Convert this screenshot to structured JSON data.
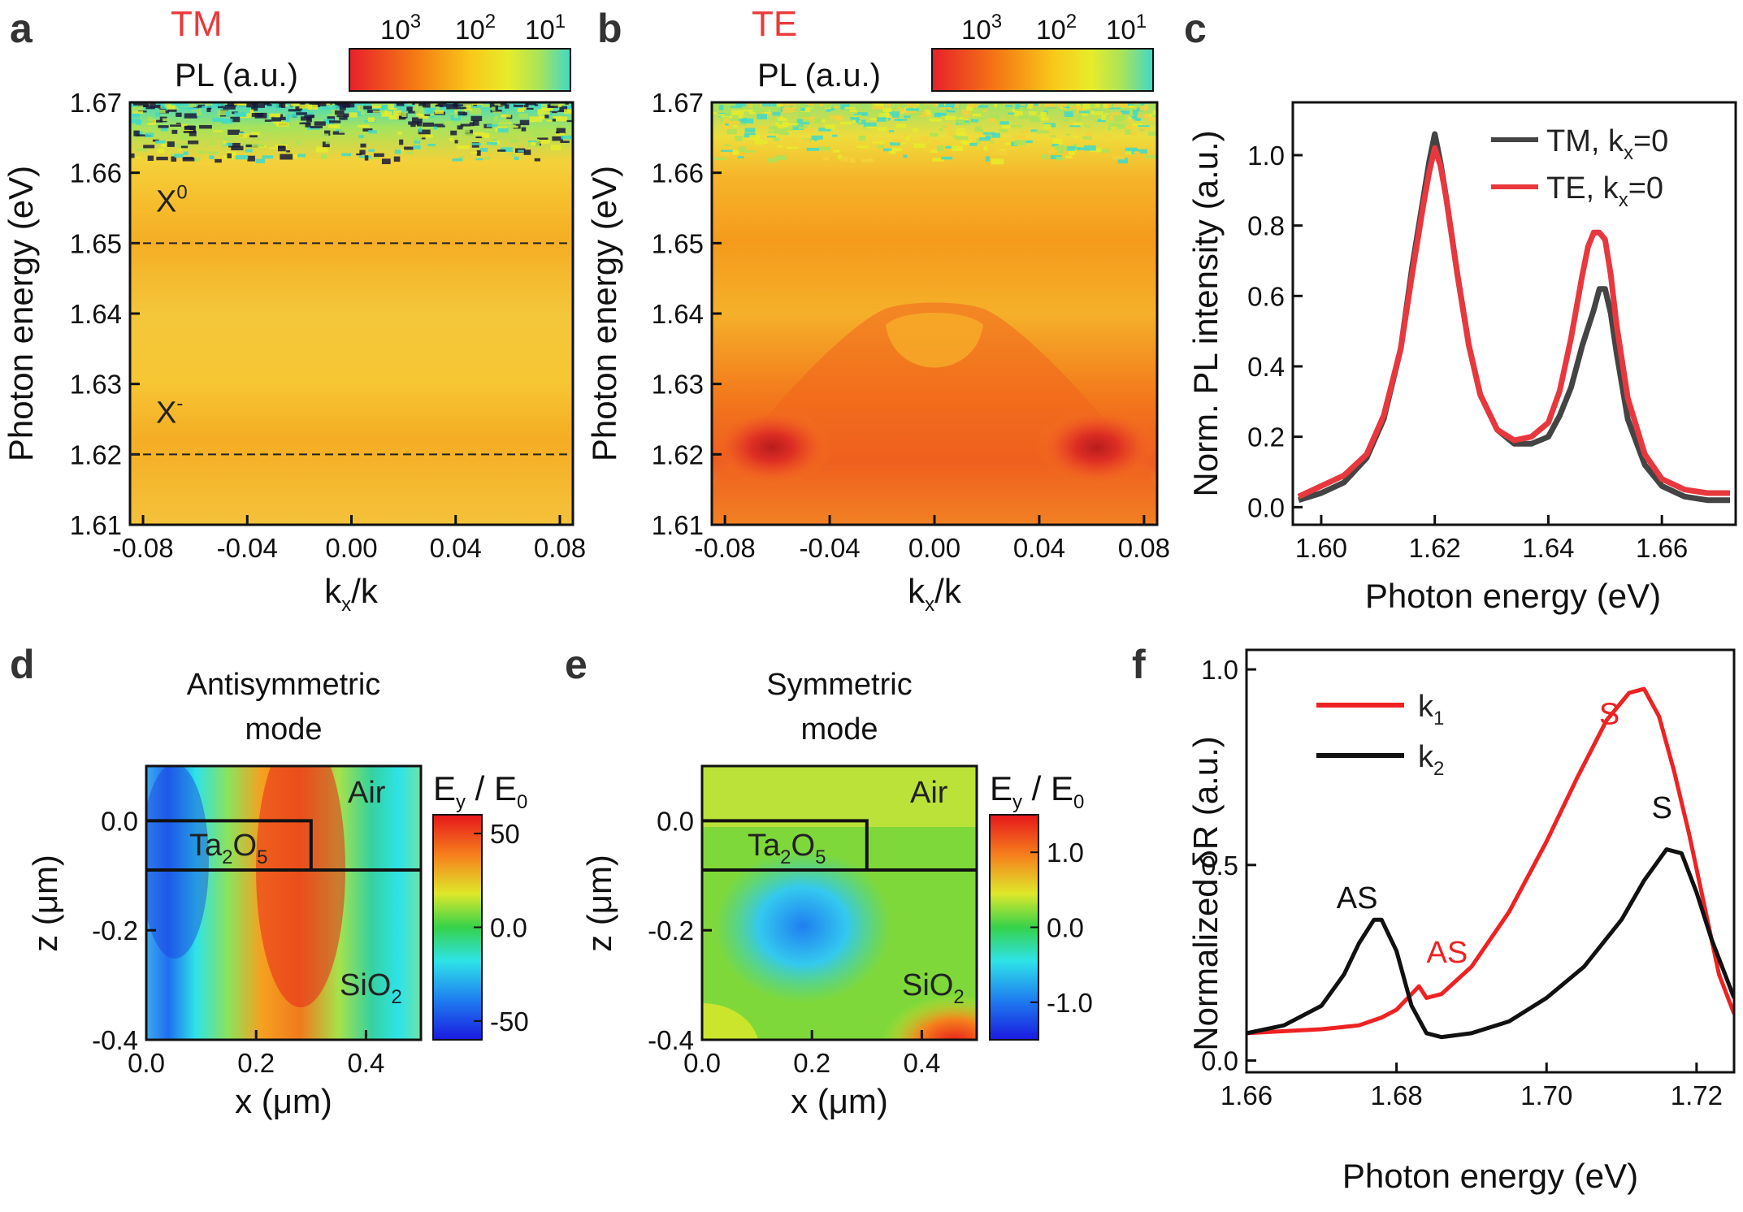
{
  "chart_data": [
    {
      "panel": "a",
      "type": "heatmap",
      "polarization": "TM",
      "colorbar_title": "PL (a.u.)",
      "colorbar_labels": [
        "10",
        "10",
        "10"
      ],
      "colorbar_exponents": [
        "3",
        "2",
        "1"
      ],
      "colorbar_colors": [
        "#e8202a",
        "#f57a14",
        "#f9c81a",
        "#e7ec2a",
        "#a8e35a",
        "#3fd9c8"
      ],
      "xlabel": "k",
      "xlabel_sub": "x",
      "xlabel_suffix": "/k",
      "ylabel": "Photon energy (eV)",
      "xlim": [
        -0.085,
        0.085
      ],
      "ylim": [
        1.61,
        1.67
      ],
      "xticks": [
        -0.08,
        -0.04,
        0.0,
        0.04,
        0.08
      ],
      "xtick_labels": [
        "-0.08",
        "-0.04",
        "0.00",
        "0.04",
        "0.08"
      ],
      "yticks": [
        1.61,
        1.62,
        1.63,
        1.64,
        1.65,
        1.66,
        1.67
      ],
      "ytick_labels": [
        "1.61",
        "1.62",
        "1.63",
        "1.64",
        "1.65",
        "1.66",
        "1.67"
      ],
      "dashed_lines": [
        1.65,
        1.62
      ],
      "annotations": [
        {
          "text": "X",
          "sup": "0",
          "x": -0.075,
          "y": 1.6545
        },
        {
          "text": "X",
          "sup": "-",
          "x": -0.075,
          "y": 1.6245
        }
      ]
    },
    {
      "panel": "b",
      "type": "heatmap",
      "polarization": "TE",
      "colorbar_title": "PL (a.u.)",
      "colorbar_labels": [
        "10",
        "10",
        "10"
      ],
      "colorbar_exponents": [
        "3",
        "2",
        "1"
      ],
      "colorbar_colors": [
        "#e8202a",
        "#f57a14",
        "#f9c81a",
        "#e7ec2a",
        "#a8e35a",
        "#3fd9c8"
      ],
      "xlabel": "k",
      "xlabel_sub": "x",
      "xlabel_suffix": "/k",
      "ylabel": "Photon energy (eV)",
      "xlim": [
        -0.085,
        0.085
      ],
      "ylim": [
        1.61,
        1.67
      ],
      "xticks": [
        -0.08,
        -0.04,
        0.0,
        0.04,
        0.08
      ],
      "xtick_labels": [
        "-0.08",
        "-0.04",
        "0.00",
        "0.04",
        "0.08"
      ],
      "yticks": [
        1.61,
        1.62,
        1.63,
        1.64,
        1.65,
        1.66,
        1.67
      ],
      "ytick_labels": [
        "1.61",
        "1.62",
        "1.63",
        "1.64",
        "1.65",
        "1.66",
        "1.67"
      ],
      "hotspots": [
        {
          "kx": -0.062,
          "energy": 1.621
        },
        {
          "kx": 0.062,
          "energy": 1.621
        }
      ]
    },
    {
      "panel": "c",
      "type": "line",
      "xlabel": "Photon energy (eV)",
      "ylabel": "Norm. PL intensity (a.u.)",
      "xlim": [
        1.595,
        1.673
      ],
      "ylim": [
        -0.05,
        1.15
      ],
      "xticks": [
        1.6,
        1.62,
        1.64,
        1.66
      ],
      "xtick_labels": [
        "1.60",
        "1.62",
        "1.64",
        "1.66"
      ],
      "yticks": [
        0.0,
        0.2,
        0.4,
        0.6,
        0.8,
        1.0
      ],
      "ytick_labels": [
        "0.0",
        "0.2",
        "0.4",
        "0.6",
        "0.8",
        "1.0"
      ],
      "series": [
        {
          "name": "TM, k",
          "name_sub": "x",
          "name_suffix": "=0",
          "color": "#444444",
          "x": [
            1.596,
            1.6,
            1.604,
            1.608,
            1.611,
            1.614,
            1.616,
            1.618,
            1.619,
            1.62,
            1.621,
            1.622,
            1.624,
            1.626,
            1.628,
            1.631,
            1.634,
            1.637,
            1.64,
            1.642,
            1.644,
            1.646,
            1.648,
            1.649,
            1.65,
            1.651,
            1.652,
            1.654,
            1.657,
            1.66,
            1.664,
            1.668,
            1.672
          ],
          "values": [
            0.02,
            0.04,
            0.07,
            0.14,
            0.25,
            0.45,
            0.68,
            0.88,
            0.98,
            1.06,
            0.98,
            0.88,
            0.66,
            0.46,
            0.32,
            0.22,
            0.18,
            0.18,
            0.2,
            0.26,
            0.34,
            0.46,
            0.56,
            0.62,
            0.62,
            0.55,
            0.44,
            0.25,
            0.12,
            0.06,
            0.03,
            0.02,
            0.02
          ]
        },
        {
          "name": "TE, k",
          "name_sub": "x",
          "name_suffix": "=0",
          "color": "#e8383d",
          "x": [
            1.596,
            1.6,
            1.604,
            1.608,
            1.611,
            1.614,
            1.616,
            1.618,
            1.619,
            1.62,
            1.621,
            1.622,
            1.624,
            1.626,
            1.628,
            1.631,
            1.634,
            1.637,
            1.64,
            1.642,
            1.644,
            1.646,
            1.647,
            1.648,
            1.649,
            1.65,
            1.651,
            1.652,
            1.654,
            1.657,
            1.66,
            1.664,
            1.668,
            1.672
          ],
          "values": [
            0.03,
            0.06,
            0.09,
            0.15,
            0.26,
            0.45,
            0.66,
            0.86,
            0.95,
            1.02,
            0.97,
            0.88,
            0.66,
            0.46,
            0.32,
            0.22,
            0.19,
            0.2,
            0.24,
            0.33,
            0.48,
            0.66,
            0.74,
            0.78,
            0.78,
            0.76,
            0.66,
            0.52,
            0.31,
            0.15,
            0.08,
            0.05,
            0.04,
            0.04
          ]
        }
      ]
    },
    {
      "panel": "d",
      "type": "heatmap",
      "title_lines": [
        "Antisymmetric",
        "mode"
      ],
      "xlabel": "x (μm)",
      "ylabel": "z (μm)",
      "xlim": [
        0.0,
        0.5
      ],
      "ylim": [
        -0.4,
        0.1
      ],
      "xticks": [
        0.0,
        0.2,
        0.4
      ],
      "xtick_labels": [
        "0.0",
        "0.2",
        "0.4"
      ],
      "yticks": [
        0.0,
        -0.2,
        -0.4
      ],
      "ytick_labels": [
        "0.0",
        "-0.2",
        "-0.4"
      ],
      "colorbar_title": "E",
      "colorbar_title_sub": "y",
      "colorbar_title_mid": " / E",
      "colorbar_title_sub2": "0",
      "colorbar_range": [
        -60,
        60
      ],
      "colorbar_ticks": [
        50,
        0.0,
        -50
      ],
      "colorbar_tick_labels": [
        "50",
        "0.0",
        "-50"
      ],
      "region_labels": [
        "Air",
        "Ta",
        "2",
        "O",
        "5",
        "SiO",
        "2"
      ],
      "waveguide": {
        "x": [
          0.0,
          0.3
        ],
        "z": [
          -0.09,
          0.0
        ],
        "substrate_top": -0.09
      }
    },
    {
      "panel": "e",
      "type": "heatmap",
      "title_lines": [
        "Symmetric",
        "mode"
      ],
      "xlabel": "x (μm)",
      "ylabel": "z (μm)",
      "xlim": [
        0.0,
        0.5
      ],
      "ylim": [
        -0.4,
        0.1
      ],
      "xticks": [
        0.0,
        0.2,
        0.4
      ],
      "xtick_labels": [
        "0.0",
        "0.2",
        "0.4"
      ],
      "yticks": [
        0.0,
        -0.2,
        -0.4
      ],
      "ytick_labels": [
        "0.0",
        "-0.2",
        "-0.4"
      ],
      "colorbar_title": "E",
      "colorbar_title_sub": "y",
      "colorbar_title_mid": " / E",
      "colorbar_title_sub2": "0",
      "colorbar_range": [
        -1.5,
        1.5
      ],
      "colorbar_ticks": [
        1.0,
        0.0,
        -1.0
      ],
      "colorbar_tick_labels": [
        "1.0",
        "0.0",
        "-1.0"
      ],
      "region_labels": [
        "Air",
        "Ta",
        "2",
        "O",
        "5",
        "SiO",
        "2"
      ],
      "waveguide": {
        "x": [
          0.0,
          0.3
        ],
        "z": [
          -0.09,
          0.0
        ],
        "substrate_top": -0.09
      }
    },
    {
      "panel": "f",
      "type": "line",
      "xlabel": "Photon energy (eV)",
      "ylabel": "Normalized δR (a.u.)",
      "xlim": [
        1.66,
        1.725
      ],
      "ylim": [
        -0.03,
        1.05
      ],
      "xticks": [
        1.66,
        1.68,
        1.7,
        1.72
      ],
      "xtick_labels": [
        "1.66",
        "1.68",
        "1.70",
        "1.72"
      ],
      "yticks": [
        0.0,
        0.5,
        1.0
      ],
      "ytick_labels": [
        "0.0",
        "0.5",
        "1.0"
      ],
      "series": [
        {
          "name": "k",
          "name_sub": "1",
          "color": "#ee2222",
          "x": [
            1.66,
            1.665,
            1.67,
            1.675,
            1.678,
            1.68,
            1.682,
            1.683,
            1.684,
            1.686,
            1.69,
            1.695,
            1.7,
            1.704,
            1.708,
            1.711,
            1.713,
            1.715,
            1.717,
            1.719,
            1.721,
            1.723,
            1.725
          ],
          "values": [
            0.07,
            0.075,
            0.08,
            0.09,
            0.11,
            0.13,
            0.17,
            0.19,
            0.16,
            0.17,
            0.24,
            0.38,
            0.56,
            0.72,
            0.87,
            0.94,
            0.95,
            0.88,
            0.74,
            0.58,
            0.4,
            0.22,
            0.12
          ]
        },
        {
          "name": "k",
          "name_sub": "2",
          "color": "#111111",
          "x": [
            1.66,
            1.665,
            1.67,
            1.673,
            1.675,
            1.677,
            1.678,
            1.68,
            1.682,
            1.684,
            1.686,
            1.69,
            1.695,
            1.7,
            1.705,
            1.71,
            1.713,
            1.716,
            1.718,
            1.72,
            1.722,
            1.724,
            1.725
          ],
          "values": [
            0.07,
            0.09,
            0.14,
            0.22,
            0.3,
            0.36,
            0.36,
            0.28,
            0.14,
            0.07,
            0.06,
            0.07,
            0.1,
            0.16,
            0.24,
            0.36,
            0.46,
            0.54,
            0.53,
            0.43,
            0.31,
            0.21,
            0.16
          ]
        }
      ],
      "annotations": [
        {
          "text": "S",
          "color": "#ee2222",
          "x": 1.707,
          "y": 0.86
        },
        {
          "text": "S",
          "color": "#111111",
          "x": 1.714,
          "y": 0.62
        },
        {
          "text": "AS",
          "color": "#111111",
          "x": 1.672,
          "y": 0.39
        },
        {
          "text": "AS",
          "color": "#ee2222",
          "x": 1.684,
          "y": 0.25
        }
      ]
    }
  ],
  "panel_letters": [
    "a",
    "b",
    "c",
    "d",
    "e",
    "f"
  ]
}
